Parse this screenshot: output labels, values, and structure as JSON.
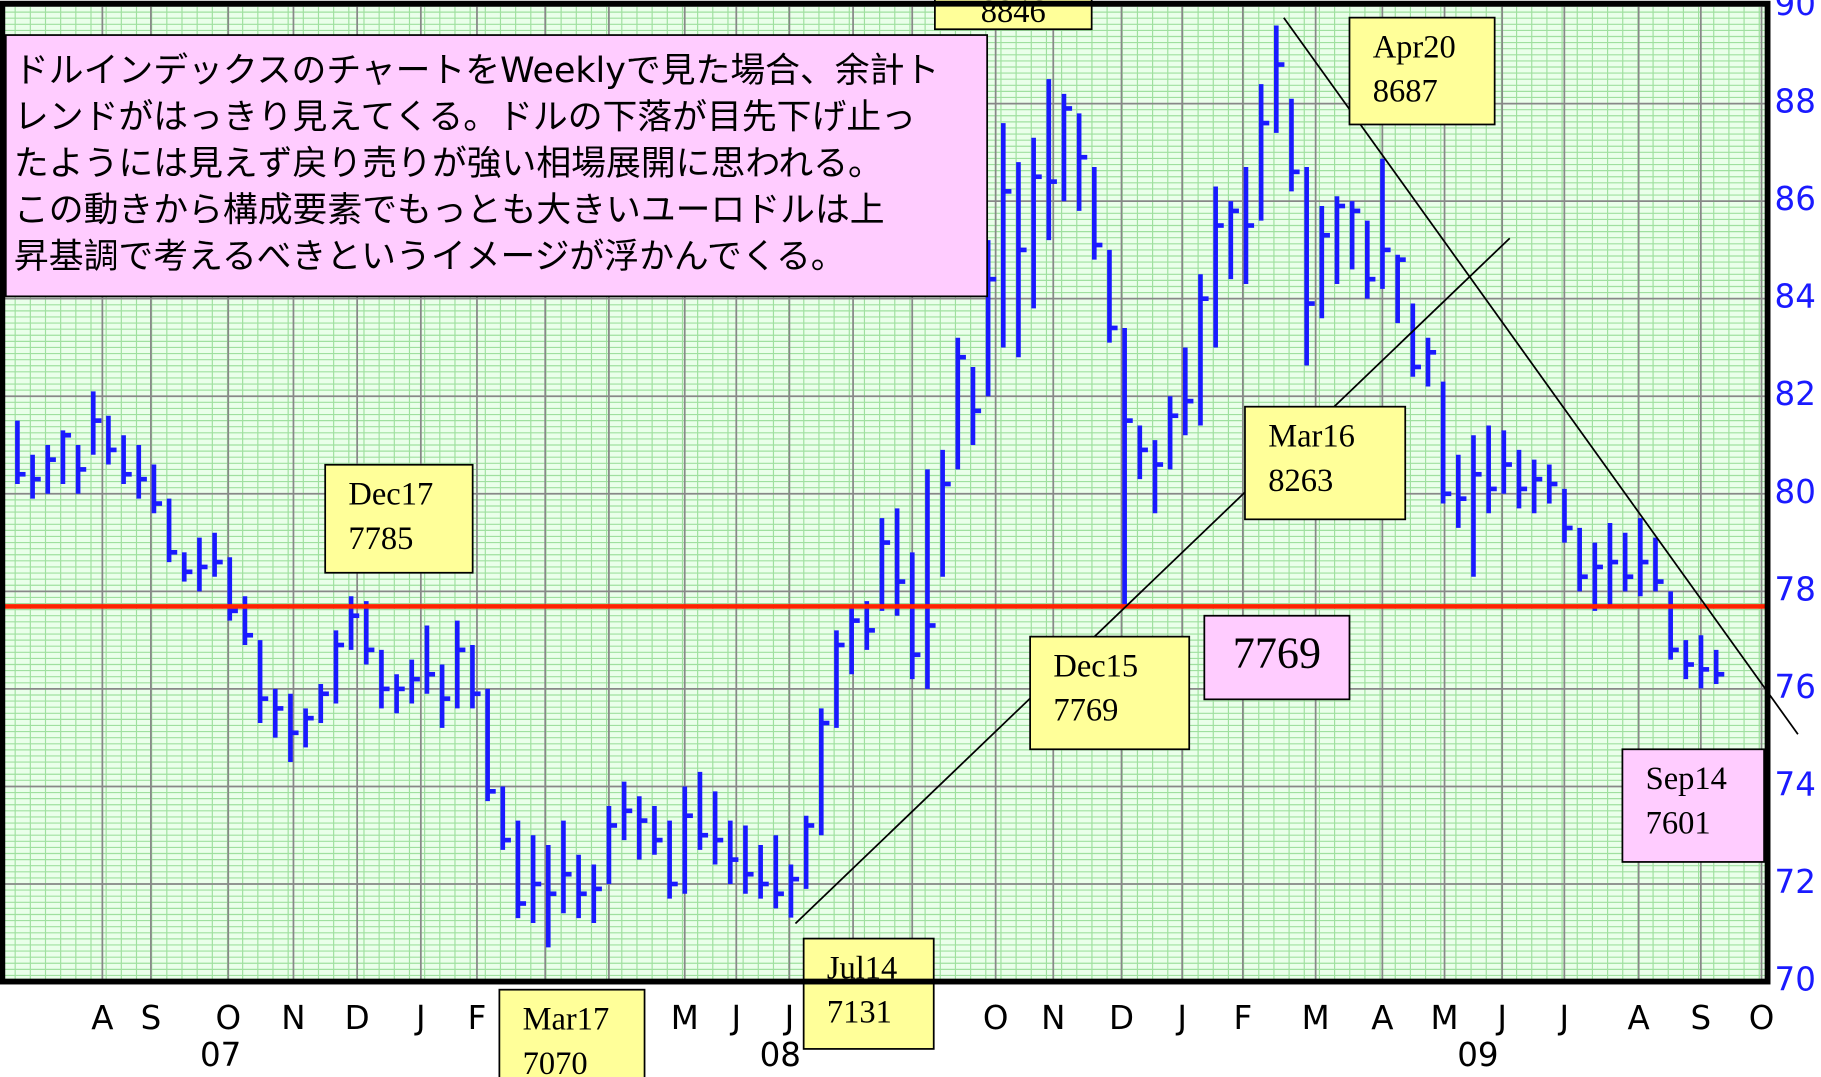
{
  "chart_data": {
    "type": "ohlc",
    "series": [
      {
        "name": "Dollar Index",
        "color": "#1a1aff",
        "high": [
          81.5,
          80.8,
          81.0,
          81.3,
          81.0,
          82.1,
          81.6,
          81.2,
          81.0,
          80.6,
          79.9,
          78.8,
          79.1,
          79.2,
          78.7,
          77.9,
          77.0,
          76.0,
          75.9,
          75.6,
          76.1,
          77.2,
          77.9,
          77.8,
          76.8,
          76.3,
          76.6,
          77.3,
          76.5,
          77.4,
          76.9,
          76.0,
          74.0,
          73.3,
          73.0,
          72.8,
          73.3,
          72.6,
          72.4,
          73.6,
          74.1,
          73.8,
          73.6,
          73.3,
          74.0,
          74.3,
          73.9,
          73.3,
          73.2,
          72.8,
          73.0,
          72.4,
          73.4,
          75.6,
          77.2,
          77.7,
          77.8,
          79.5,
          79.7,
          78.8,
          80.5,
          80.9,
          83.2,
          82.6,
          85.2,
          87.6,
          86.8,
          87.3,
          88.5,
          88.2,
          87.8,
          86.7,
          85.0,
          83.4,
          81.4,
          81.1,
          82.0,
          83.0,
          84.5,
          86.3,
          86.0,
          86.7,
          88.4,
          89.6,
          88.1,
          86.7,
          85.9,
          86.1,
          86.0,
          85.6,
          86.87,
          84.9,
          83.9,
          83.2,
          82.3,
          80.8,
          81.2,
          81.4,
          81.3,
          80.9,
          80.7,
          80.6,
          80.1,
          79.3,
          79.0,
          79.4,
          79.2,
          79.5,
          79.1,
          78.0,
          77.0,
          77.1,
          76.8
        ],
        "low": [
          80.2,
          79.9,
          80.0,
          80.2,
          80.0,
          80.8,
          80.6,
          80.2,
          79.9,
          79.6,
          78.6,
          78.2,
          78.0,
          78.3,
          77.4,
          76.9,
          75.3,
          75.0,
          74.5,
          74.8,
          75.3,
          75.7,
          76.8,
          76.5,
          75.6,
          75.5,
          75.7,
          75.9,
          75.2,
          75.6,
          75.6,
          73.7,
          72.7,
          71.3,
          71.2,
          70.7,
          71.4,
          71.3,
          71.2,
          72.0,
          72.9,
          72.5,
          72.6,
          71.7,
          71.8,
          72.7,
          72.4,
          72.0,
          71.8,
          71.7,
          71.5,
          71.31,
          71.9,
          73.0,
          75.2,
          76.3,
          76.8,
          77.6,
          77.5,
          76.2,
          76.0,
          78.3,
          80.5,
          81.0,
          82.0,
          83.0,
          82.8,
          83.8,
          85.2,
          86.0,
          85.8,
          84.8,
          83.1,
          77.69,
          80.3,
          79.6,
          80.5,
          81.2,
          81.4,
          83.0,
          84.4,
          84.3,
          85.6,
          87.4,
          86.2,
          82.63,
          83.6,
          84.3,
          84.6,
          84.0,
          84.2,
          83.5,
          82.4,
          82.2,
          79.8,
          79.3,
          78.3,
          79.6,
          80.0,
          79.7,
          79.6,
          79.8,
          79.0,
          78.0,
          77.6,
          77.7,
          78.0,
          77.9,
          78.0,
          76.6,
          76.2,
          76.01,
          76.1
        ],
        "close": [
          80.4,
          80.3,
          80.7,
          81.2,
          80.5,
          81.5,
          80.9,
          80.4,
          80.3,
          79.8,
          78.8,
          78.4,
          78.5,
          78.6,
          77.6,
          77.1,
          75.8,
          75.6,
          75.1,
          75.4,
          75.9,
          76.9,
          77.5,
          76.8,
          76.0,
          76.0,
          76.2,
          76.3,
          75.8,
          76.8,
          75.9,
          73.9,
          72.9,
          71.6,
          72.0,
          71.8,
          72.2,
          71.8,
          71.9,
          73.2,
          73.5,
          73.3,
          72.9,
          72.0,
          73.4,
          73.0,
          72.9,
          72.5,
          72.2,
          72.0,
          71.8,
          72.1,
          73.2,
          75.3,
          76.9,
          77.4,
          77.2,
          79.0,
          78.2,
          76.7,
          77.3,
          80.2,
          82.8,
          81.7,
          84.4,
          86.2,
          85.0,
          86.5,
          86.4,
          87.9,
          86.9,
          85.1,
          83.4,
          81.5,
          80.9,
          80.6,
          81.6,
          81.9,
          84.0,
          85.5,
          85.8,
          85.5,
          87.6,
          88.8,
          86.6,
          83.9,
          85.3,
          85.9,
          85.8,
          84.4,
          85.0,
          84.8,
          82.6,
          82.9,
          80.0,
          79.9,
          80.4,
          80.1,
          80.6,
          80.1,
          80.3,
          80.2,
          79.3,
          78.3,
          78.5,
          78.6,
          78.3,
          78.6,
          78.2,
          76.8,
          76.5,
          76.4,
          76.3
        ]
      }
    ],
    "xlim": [
      -1.15,
      115.4
    ],
    "xticks": [
      {
        "value": 5.6,
        "label": "A"
      },
      {
        "value": 8.8,
        "label": "S"
      },
      {
        "value": 13.9,
        "label": "O"
      },
      {
        "value": 18.2,
        "label": "N"
      },
      {
        "value": 22.4,
        "label": "D"
      },
      {
        "value": 26.6,
        "label": "J"
      },
      {
        "value": 30.3,
        "label": "F"
      },
      {
        "value": 34.8,
        "label": "M"
      },
      {
        "value": 39,
        "label": "A"
      },
      {
        "value": 44,
        "label": "M"
      },
      {
        "value": 47.4,
        "label": "J"
      },
      {
        "value": 50.9,
        "label": "J"
      },
      {
        "value": 55.1,
        "label": "A"
      },
      {
        "value": 59,
        "label": "S"
      },
      {
        "value": 64.5,
        "label": "O"
      },
      {
        "value": 68.3,
        "label": "N"
      },
      {
        "value": 72.8,
        "label": "D"
      },
      {
        "value": 76.8,
        "label": "J"
      },
      {
        "value": 80.8,
        "label": "F"
      },
      {
        "value": 85.6,
        "label": "M"
      },
      {
        "value": 90,
        "label": "A"
      },
      {
        "value": 94.1,
        "label": "M"
      },
      {
        "value": 97.9,
        "label": "J"
      },
      {
        "value": 102,
        "label": "J"
      },
      {
        "value": 106.9,
        "label": "A"
      },
      {
        "value": 111,
        "label": "S"
      },
      {
        "value": 115,
        "label": "O"
      }
    ],
    "year_ticks": [
      {
        "value": 13.4,
        "label": "07"
      },
      {
        "value": 50.3,
        "label": "08"
      },
      {
        "value": 96.3,
        "label": "09"
      }
    ],
    "ylim": [
      70,
      90
    ],
    "yticks": [
      70,
      72,
      74,
      76,
      78,
      80,
      82,
      84,
      86,
      88,
      90
    ],
    "grid": true,
    "hline": {
      "value": 77.69,
      "color": "#ff2200"
    },
    "trend_lines": [
      {
        "x": [
          51.3,
          98.4
        ],
        "y": [
          71.19,
          85.24
        ]
      },
      {
        "x": [
          83.5,
          117.4
        ],
        "y": [
          89.76,
          75.07
        ]
      }
    ],
    "note": [
      "ドルインデックスのチャートをWeeklyで見た場合、余計ト",
      "レンドがはっきり見えてくる。ドルの下落が目先下げ止っ",
      "たようには見えず戻り売りが強い相場展開に思われる。",
      "この動きから構成要素でもっとも大きいユーロドルは上",
      "昇基調で考えるべきというイメージが浮かんでくる。"
    ],
    "annotations": [
      [
        "8846"
      ],
      [
        "Apr20",
        "8687"
      ],
      [
        "Dec17",
        "7785"
      ],
      [
        "Mar16",
        "8263"
      ],
      [
        "Dec15",
        "7769"
      ],
      [
        "7769"
      ],
      [
        "Sep14",
        "7601"
      ],
      [
        "Jul14",
        "7131"
      ],
      [
        "Mar17",
        "7070"
      ]
    ]
  }
}
